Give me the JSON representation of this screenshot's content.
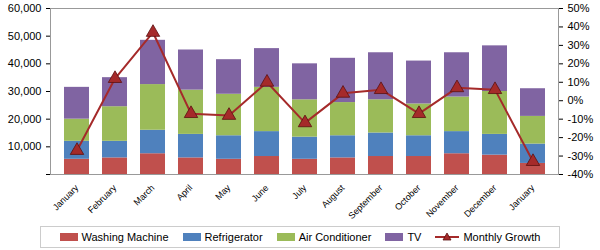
{
  "chart_data": {
    "type": "bar",
    "stacked": true,
    "grid": false,
    "legend": "bottom",
    "categories": [
      "January",
      "February",
      "March",
      "April",
      "May",
      "June",
      "July",
      "August",
      "September",
      "October",
      "November",
      "December",
      "January"
    ],
    "ylim": [
      0,
      60000
    ],
    "yticks": [
      0,
      {
        "value": 10000,
        "label": "10,000"
      },
      {
        "value": 20000,
        "label": "20,000"
      },
      {
        "value": 30000,
        "label": "30,000"
      },
      {
        "value": 40000,
        "label": "40,000"
      },
      {
        "value": 50000,
        "label": "50,000"
      },
      {
        "value": 60000,
        "label": "60,000"
      }
    ],
    "y2lim": [
      -40,
      50
    ],
    "y2ticks": [
      {
        "value": -40,
        "label": "-40%"
      },
      {
        "value": -30,
        "label": "-30%"
      },
      {
        "value": -20,
        "label": "-20%"
      },
      {
        "value": -10,
        "label": "-10%"
      },
      {
        "value": 0,
        "label": "0%"
      },
      {
        "value": 10,
        "label": "10%"
      },
      {
        "value": 20,
        "label": "20%"
      },
      {
        "value": 30,
        "label": "30%"
      },
      {
        "value": 40,
        "label": "40%"
      },
      {
        "value": 50,
        "label": "50%"
      }
    ],
    "series": [
      {
        "name": "Washing Machine",
        "color": "#C0504D",
        "values": [
          5500,
          6000,
          7500,
          6000,
          5500,
          6500,
          5500,
          6000,
          6500,
          6500,
          7500,
          7000,
          4000
        ]
      },
      {
        "name": "Refrigerator",
        "color": "#4F81BD",
        "values": [
          6500,
          6000,
          8500,
          8500,
          8500,
          9000,
          8000,
          8000,
          8500,
          7500,
          8000,
          7500,
          7000
        ]
      },
      {
        "name": "Air Conditioner",
        "color": "#9BBB59",
        "values": [
          8000,
          12500,
          16500,
          16000,
          15000,
          16000,
          13500,
          12000,
          12000,
          11500,
          12500,
          15500,
          10000
        ]
      },
      {
        "name": "TV",
        "color": "#8064A2",
        "values": [
          11500,
          10500,
          16000,
          14500,
          12500,
          14000,
          13000,
          16000,
          17000,
          15500,
          16000,
          16500,
          10000
        ]
      },
      {
        "name": "Monthly Growth",
        "type": "line",
        "axis": "y2",
        "marker": "triangle",
        "color": "#A52A2A",
        "values": [
          -27,
          12,
          37,
          -7,
          -8,
          10,
          -12,
          4,
          6,
          -7,
          7,
          6,
          -33
        ]
      }
    ]
  }
}
